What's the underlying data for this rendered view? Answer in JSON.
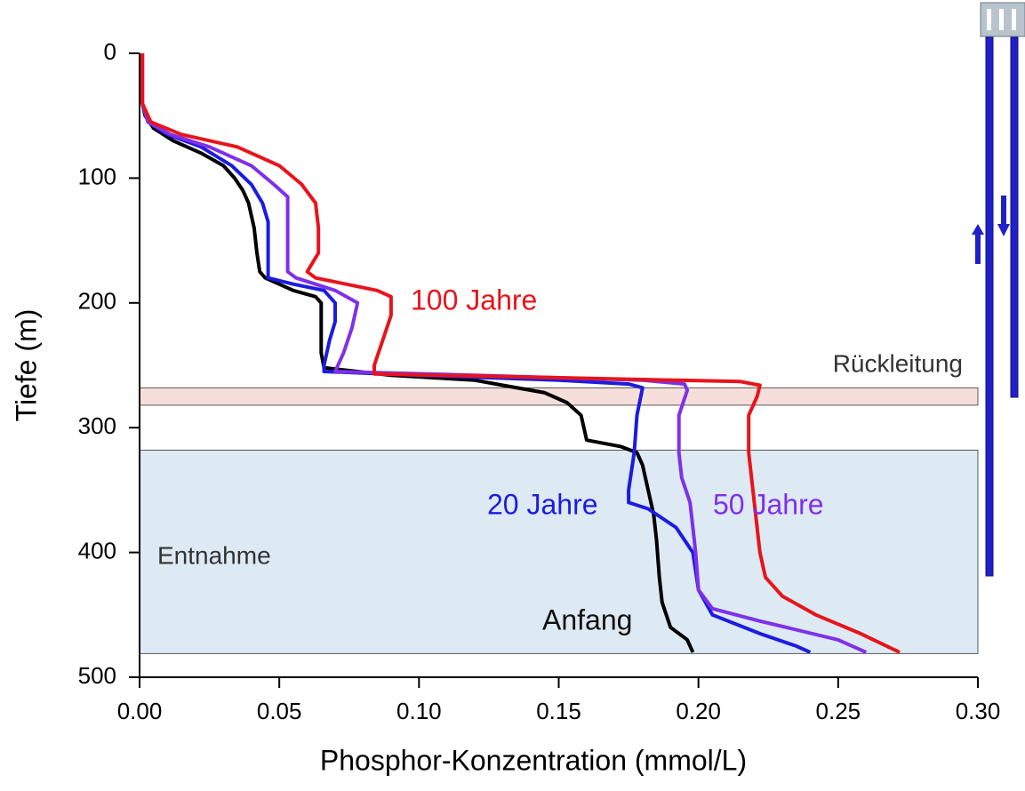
{
  "chart_data": {
    "type": "line",
    "x_label": "Phosphor-Konzentration (mmol/L)",
    "y_label": "Tiefe (m)",
    "xlim": [
      0,
      0.3
    ],
    "xticks": [
      {
        "value": 0,
        "label": "0.00"
      },
      {
        "value": 0.05,
        "label": "0.05"
      },
      {
        "value": 0.1,
        "label": "0.10"
      },
      {
        "value": 0.15,
        "label": "0.15"
      },
      {
        "value": 0.2,
        "label": "0.20"
      },
      {
        "value": 0.25,
        "label": "0.25"
      },
      {
        "value": 0.3,
        "label": "0.30"
      }
    ],
    "ylim": [
      0,
      500
    ],
    "yticks": [
      0,
      100,
      200,
      300,
      400,
      500
    ],
    "y_inverted": true,
    "bands": [
      {
        "label": "Rückleitung",
        "ylim": [
          268,
          282
        ],
        "color": "#f6dedb"
      },
      {
        "label": "Entnahme",
        "ylim": [
          318,
          481
        ],
        "color": "#dde9f3"
      }
    ],
    "series": [
      {
        "name": "Anfang",
        "color": "#000000",
        "y": [
          0,
          40,
          50,
          60,
          70,
          80,
          90,
          100,
          110,
          120,
          140,
          160,
          175,
          180,
          190,
          195,
          200,
          220,
          240,
          252,
          258,
          262,
          266,
          272,
          280,
          290,
          300,
          310,
          315,
          320,
          330,
          350,
          370,
          390,
          420,
          440,
          460,
          470,
          480
        ],
        "x": [
          0.001,
          0.001,
          0.002,
          0.005,
          0.012,
          0.022,
          0.03,
          0.034,
          0.037,
          0.039,
          0.041,
          0.042,
          0.043,
          0.045,
          0.055,
          0.063,
          0.065,
          0.065,
          0.065,
          0.066,
          0.09,
          0.12,
          0.13,
          0.145,
          0.153,
          0.158,
          0.159,
          0.16,
          0.172,
          0.178,
          0.18,
          0.182,
          0.184,
          0.185,
          0.186,
          0.187,
          0.19,
          0.196,
          0.198
        ]
      },
      {
        "name": "20 Jahre",
        "color": "#1c1ce0",
        "y": [
          0,
          40,
          55,
          65,
          75,
          90,
          105,
          120,
          135,
          150,
          180,
          185,
          190,
          200,
          215,
          230,
          250,
          255,
          258,
          262,
          265,
          268,
          290,
          320,
          350,
          360,
          365,
          380,
          400,
          430,
          450,
          465,
          475,
          480
        ],
        "x": [
          0.001,
          0.001,
          0.003,
          0.01,
          0.022,
          0.033,
          0.04,
          0.044,
          0.046,
          0.046,
          0.046,
          0.055,
          0.066,
          0.07,
          0.07,
          0.068,
          0.066,
          0.066,
          0.1,
          0.15,
          0.175,
          0.18,
          0.178,
          0.177,
          0.175,
          0.175,
          0.182,
          0.192,
          0.198,
          0.2,
          0.205,
          0.222,
          0.235,
          0.24
        ]
      },
      {
        "name": "50 Jahre",
        "color": "#8030e8",
        "y": [
          0,
          40,
          55,
          65,
          75,
          90,
          105,
          115,
          140,
          175,
          180,
          190,
          200,
          220,
          240,
          255,
          258,
          262,
          265,
          270,
          290,
          320,
          340,
          360,
          380,
          400,
          430,
          445,
          455,
          470,
          480
        ],
        "x": [
          0.001,
          0.001,
          0.003,
          0.011,
          0.025,
          0.04,
          0.048,
          0.053,
          0.053,
          0.053,
          0.056,
          0.07,
          0.078,
          0.076,
          0.073,
          0.07,
          0.12,
          0.18,
          0.195,
          0.196,
          0.193,
          0.193,
          0.194,
          0.197,
          0.198,
          0.199,
          0.2,
          0.205,
          0.222,
          0.25,
          0.26
        ]
      },
      {
        "name": "100 Jahre",
        "color": "#e8141b",
        "y": [
          0,
          40,
          55,
          65,
          75,
          90,
          105,
          120,
          140,
          160,
          175,
          180,
          190,
          195,
          210,
          230,
          250,
          257,
          260,
          263,
          266,
          275,
          290,
          320,
          360,
          400,
          420,
          435,
          450,
          465,
          480
        ],
        "x": [
          0.001,
          0.001,
          0.004,
          0.015,
          0.035,
          0.05,
          0.058,
          0.063,
          0.064,
          0.064,
          0.06,
          0.063,
          0.085,
          0.09,
          0.09,
          0.087,
          0.084,
          0.084,
          0.15,
          0.215,
          0.222,
          0.221,
          0.218,
          0.218,
          0.22,
          0.222,
          0.224,
          0.23,
          0.242,
          0.258,
          0.272
        ]
      }
    ]
  }
}
